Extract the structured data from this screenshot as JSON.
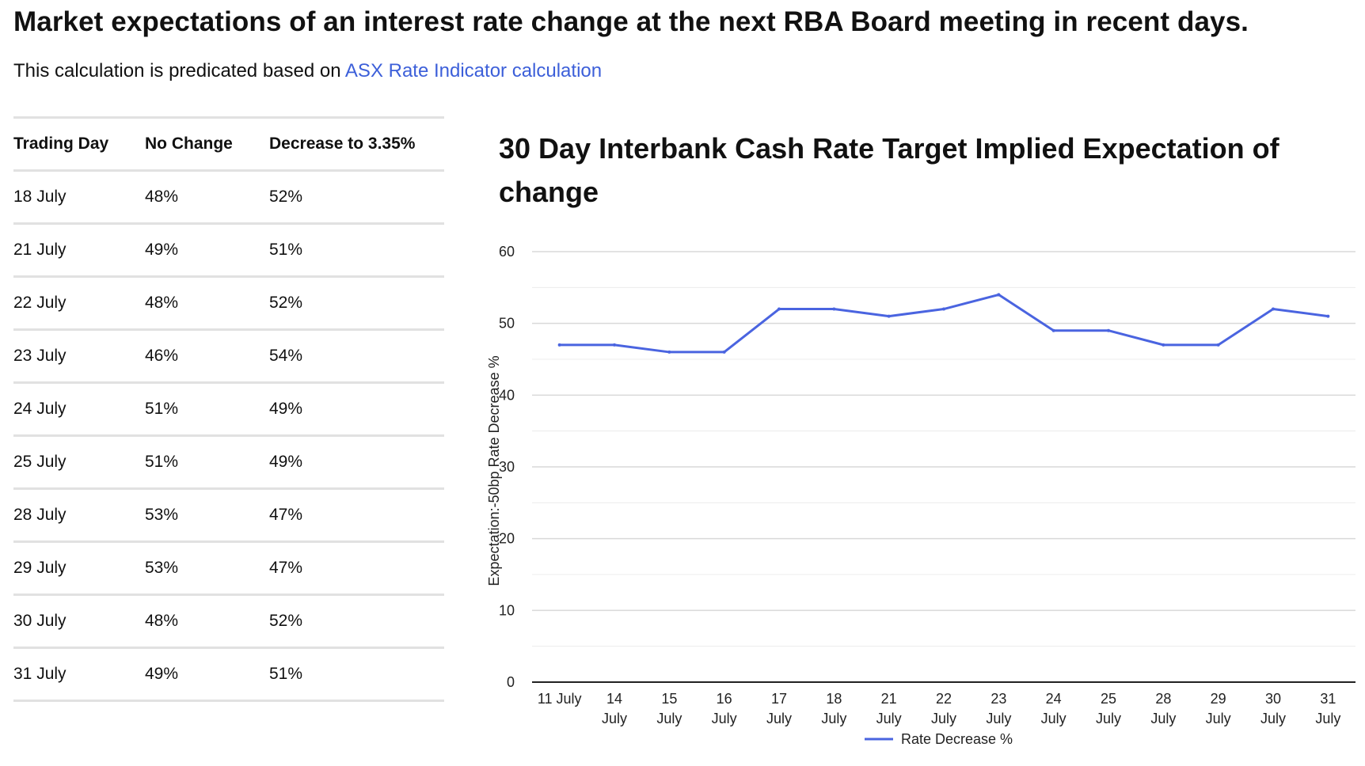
{
  "page": {
    "headline": "Market expectations of an interest rate change at the next RBA Board meeting in recent days.",
    "subline_prefix": "This calculation is predicated based on",
    "subline_link": "ASX Rate Indicator calculation"
  },
  "table": {
    "headers": [
      "Trading Day",
      "No Change",
      "Decrease to 3.35%"
    ],
    "rows": [
      [
        "18 July",
        "48%",
        "52%"
      ],
      [
        "21 July",
        "49%",
        "51%"
      ],
      [
        "22 July",
        "48%",
        "52%"
      ],
      [
        "23 July",
        "46%",
        "54%"
      ],
      [
        "24 July",
        "51%",
        "49%"
      ],
      [
        "25 July",
        "51%",
        "49%"
      ],
      [
        "28 July",
        "53%",
        "47%"
      ],
      [
        "29 July",
        "53%",
        "47%"
      ],
      [
        "30 July",
        "48%",
        "52%"
      ],
      [
        "31 July",
        "49%",
        "51%"
      ]
    ]
  },
  "colors": {
    "line": "#4a64e0",
    "grid": "#d9d9d9",
    "axis": "#222222",
    "link": "#3c5fd9"
  },
  "chart_data": {
    "type": "line",
    "title": "30 Day Interbank Cash Rate Target Implied Expectation of change",
    "xlabel": "",
    "ylabel": "Expectation:-50bp Rate Decrease %",
    "ylim": [
      0,
      60
    ],
    "yticks": [
      0,
      10,
      20,
      30,
      40,
      50,
      60
    ],
    "grid": true,
    "legend": "bottom-center",
    "categories": [
      [
        "11 July"
      ],
      [
        "14",
        "July"
      ],
      [
        "15",
        "July"
      ],
      [
        "16",
        "July"
      ],
      [
        "17",
        "July"
      ],
      [
        "18",
        "July"
      ],
      [
        "21",
        "July"
      ],
      [
        "22",
        "July"
      ],
      [
        "23",
        "July"
      ],
      [
        "24",
        "July"
      ],
      [
        "25",
        "July"
      ],
      [
        "28",
        "July"
      ],
      [
        "29",
        "July"
      ],
      [
        "30",
        "July"
      ],
      [
        "31",
        "July"
      ]
    ],
    "series": [
      {
        "name": "Rate Decrease %",
        "values": [
          47,
          47,
          46,
          46,
          52,
          52,
          51,
          52,
          54,
          49,
          49,
          47,
          47,
          52,
          51
        ]
      }
    ]
  }
}
